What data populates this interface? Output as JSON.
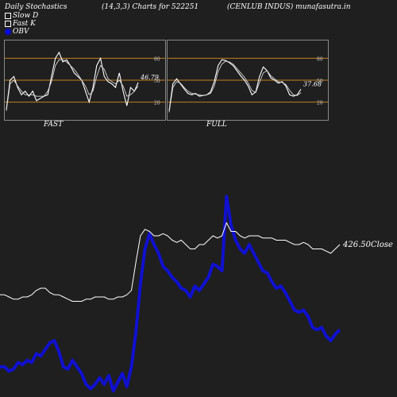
{
  "header": {
    "left": "Daily Stochastics",
    "middle": "(14,3,3) Charts for 522251",
    "right": "(CENLUB INDUS) munafasutra.in"
  },
  "legend": {
    "items": [
      {
        "label": "Slow  D",
        "color": "#ffffff"
      },
      {
        "label": "Fast K",
        "color": "#ffffff"
      },
      {
        "label": "OBV",
        "color": "#0a0ad8"
      }
    ]
  },
  "colors": {
    "background": "#1f1f1f",
    "obv": "#1010d0",
    "price": "#ffffff",
    "levels": "#c08020",
    "panel_border": "#888888"
  },
  "chart_data": [
    {
      "type": "line",
      "panel": "FAST",
      "title": "FAST",
      "ylim": [
        0,
        100
      ],
      "yticks": [
        20,
        50,
        80
      ],
      "levels": [
        20,
        50,
        80
      ],
      "last_value_label": "46.79",
      "series": [
        {
          "values": [
            10,
            50,
            55,
            40,
            30,
            35,
            28,
            35,
            22,
            25,
            28,
            30,
            55,
            80,
            88,
            75,
            78,
            70,
            60,
            55,
            50,
            35,
            20,
            40,
            70,
            80,
            55,
            48,
            45,
            40,
            60,
            35,
            15,
            40,
            35,
            46.79
          ]
        },
        {
          "values": [
            8,
            45,
            50,
            42,
            35,
            30,
            30,
            30,
            28,
            28,
            28,
            35,
            48,
            70,
            78,
            78,
            75,
            70,
            65,
            58,
            50,
            42,
            30,
            35,
            55,
            70,
            65,
            52,
            48,
            45,
            50,
            42,
            28,
            30,
            35,
            42
          ]
        }
      ]
    },
    {
      "type": "line",
      "panel": "FULL",
      "title": "FULL",
      "ylim": [
        0,
        100
      ],
      "yticks": [
        20,
        50,
        80
      ],
      "levels": [
        20,
        50,
        80
      ],
      "last_value_label": "37.68",
      "series": [
        {
          "values": [
            8,
            45,
            52,
            45,
            38,
            32,
            30,
            32,
            28,
            29,
            30,
            34,
            48,
            70,
            78,
            77,
            74,
            70,
            63,
            56,
            50,
            42,
            30,
            34,
            55,
            68,
            63,
            53,
            50,
            46,
            48,
            42,
            30,
            28,
            30,
            37.68
          ]
        },
        {
          "values": [
            6,
            40,
            48,
            46,
            40,
            35,
            32,
            31,
            30,
            29,
            30,
            32,
            42,
            62,
            72,
            76,
            75,
            72,
            66,
            60,
            54,
            46,
            36,
            33,
            47,
            60,
            63,
            56,
            52,
            48,
            47,
            44,
            36,
            30,
            29,
            33
          ]
        }
      ]
    },
    {
      "type": "line",
      "panel": "main",
      "close_label": "426.50",
      "close_suffix": "Close",
      "series": [
        {
          "name": "OBV",
          "values": [
            0.12,
            0.12,
            0.1,
            0.11,
            0.14,
            0.13,
            0.15,
            0.14,
            0.18,
            0.17,
            0.2,
            0.23,
            0.24,
            0.19,
            0.12,
            0.11,
            0.15,
            0.12,
            0.09,
            0.04,
            0.02,
            0.04,
            0.07,
            0.04,
            0.08,
            0.01,
            0.05,
            0.09,
            0.03,
            0.12,
            0.28,
            0.5,
            0.66,
            0.73,
            0.68,
            0.64,
            0.58,
            0.56,
            0.53,
            0.51,
            0.48,
            0.47,
            0.44,
            0.49,
            0.47,
            0.5,
            0.53,
            0.59,
            0.58,
            0.56,
            0.9,
            0.77,
            0.7,
            0.66,
            0.64,
            0.68,
            0.64,
            0.6,
            0.56,
            0.55,
            0.51,
            0.48,
            0.49,
            0.46,
            0.42,
            0.38,
            0.37,
            0.38,
            0.35,
            0.3,
            0.29,
            0.3,
            0.26,
            0.24,
            0.27,
            0.29
          ]
        },
        {
          "name": "Close",
          "values": [
            0.45,
            0.45,
            0.44,
            0.43,
            0.43,
            0.44,
            0.44,
            0.45,
            0.47,
            0.48,
            0.48,
            0.46,
            0.45,
            0.45,
            0.44,
            0.43,
            0.42,
            0.42,
            0.42,
            0.43,
            0.43,
            0.44,
            0.44,
            0.44,
            0.43,
            0.43,
            0.44,
            0.44,
            0.45,
            0.47,
            0.6,
            0.72,
            0.75,
            0.74,
            0.72,
            0.72,
            0.73,
            0.72,
            0.7,
            0.69,
            0.7,
            0.68,
            0.66,
            0.66,
            0.68,
            0.68,
            0.7,
            0.72,
            0.71,
            0.72,
            0.78,
            0.74,
            0.74,
            0.72,
            0.71,
            0.72,
            0.72,
            0.72,
            0.71,
            0.71,
            0.71,
            0.7,
            0.7,
            0.7,
            0.69,
            0.68,
            0.68,
            0.69,
            0.68,
            0.66,
            0.66,
            0.66,
            0.65,
            0.64,
            0.66,
            0.68
          ]
        }
      ]
    }
  ]
}
